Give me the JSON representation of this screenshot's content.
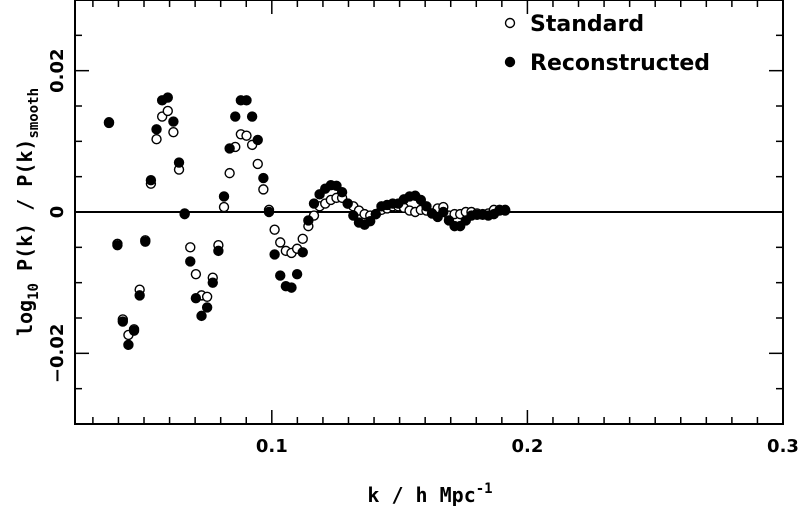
{
  "chart_data": {
    "type": "scatter",
    "xlabel": "k / h Mpc",
    "xlabel_sup": "-1",
    "ylabel_main": "log",
    "ylabel_sub1": "10",
    "ylabel_mid": " P(k) / P(k)",
    "ylabel_sub2": "smooth",
    "xlim": [
      0.023,
      0.3
    ],
    "ylim": [
      -0.03,
      0.03
    ],
    "x_ticks": [
      {
        "value": 0.1,
        "label": "0.1"
      },
      {
        "value": 0.2,
        "label": "0.2"
      },
      {
        "value": 0.3,
        "label": "0.3"
      }
    ],
    "y_ticks": [
      {
        "value": 0.02,
        "label": "0.02"
      },
      {
        "value": 0,
        "label": "0"
      },
      {
        "value": -0.02,
        "label": "−0.02"
      }
    ],
    "reference_line_y": 0,
    "legend_position": "top-right",
    "series": [
      {
        "name": "Standard",
        "marker": "open-circle",
        "points": [
          [
            0.0363,
            0.0126
          ],
          [
            0.0396,
            -0.0045
          ],
          [
            0.0417,
            -0.0152
          ],
          [
            0.0439,
            -0.0174
          ],
          [
            0.0461,
            -0.0166
          ],
          [
            0.0483,
            -0.011
          ],
          [
            0.0505,
            -0.004
          ],
          [
            0.0527,
            0.004
          ],
          [
            0.0549,
            0.0103
          ],
          [
            0.0571,
            0.0135
          ],
          [
            0.0593,
            0.0143
          ],
          [
            0.0615,
            0.0113
          ],
          [
            0.0637,
            0.006
          ],
          [
            0.0659,
            -0.0002
          ],
          [
            0.0681,
            -0.005
          ],
          [
            0.0703,
            -0.0088
          ],
          [
            0.0725,
            -0.0118
          ],
          [
            0.0747,
            -0.012
          ],
          [
            0.0769,
            -0.0093
          ],
          [
            0.0791,
            -0.0047
          ],
          [
            0.0813,
            0.0007
          ],
          [
            0.0835,
            0.0055
          ],
          [
            0.0857,
            0.0092
          ],
          [
            0.0879,
            0.011
          ],
          [
            0.0901,
            0.0108
          ],
          [
            0.0923,
            0.0095
          ],
          [
            0.0945,
            0.0068
          ],
          [
            0.0967,
            0.0032
          ],
          [
            0.0989,
            0.0003
          ],
          [
            0.1011,
            -0.0025
          ],
          [
            0.1033,
            -0.0043
          ],
          [
            0.1055,
            -0.0055
          ],
          [
            0.1077,
            -0.0058
          ],
          [
            0.1099,
            -0.0052
          ],
          [
            0.1121,
            -0.0038
          ],
          [
            0.1143,
            -0.002
          ],
          [
            0.1165,
            -0.0005
          ],
          [
            0.1187,
            0.0008
          ],
          [
            0.1209,
            0.0012
          ],
          [
            0.1231,
            0.0017
          ],
          [
            0.1253,
            0.002
          ],
          [
            0.1275,
            0.002
          ],
          [
            0.1297,
            0.0012
          ],
          [
            0.1319,
            0.0008
          ],
          [
            0.1341,
            0.0002
          ],
          [
            0.1363,
            -0.0003
          ],
          [
            0.1385,
            -0.0005
          ],
          [
            0.1407,
            -0.0003
          ],
          [
            0.1429,
            0.0003
          ],
          [
            0.1451,
            0.0005
          ],
          [
            0.1473,
            0.0008
          ],
          [
            0.1495,
            0.0008
          ],
          [
            0.1517,
            0.0006
          ],
          [
            0.1539,
            0.0002
          ],
          [
            0.1561,
            0.0
          ],
          [
            0.1583,
            0.0003
          ],
          [
            0.1605,
            0.0002
          ],
          [
            0.1627,
            -0.0002
          ],
          [
            0.1649,
            0.0005
          ],
          [
            0.1671,
            0.0007
          ],
          [
            0.1693,
            -0.0005
          ],
          [
            0.1715,
            -0.0003
          ],
          [
            0.1737,
            -0.0003
          ],
          [
            0.1759,
            0.0
          ],
          [
            0.1781,
            0.0
          ],
          [
            0.1803,
            -0.0002
          ],
          [
            0.1825,
            -0.0004
          ],
          [
            0.1847,
            -0.0002
          ],
          [
            0.1869,
            0.0003
          ],
          [
            0.1891,
            0.0003
          ],
          [
            0.1913,
            0.0003
          ]
        ]
      },
      {
        "name": "Reconstructed",
        "marker": "filled-circle",
        "points": [
          [
            0.0363,
            0.0127
          ],
          [
            0.0396,
            -0.0047
          ],
          [
            0.0417,
            -0.0155
          ],
          [
            0.0439,
            -0.0188
          ],
          [
            0.0461,
            -0.0168
          ],
          [
            0.0483,
            -0.0118
          ],
          [
            0.0505,
            -0.0042
          ],
          [
            0.0527,
            0.0045
          ],
          [
            0.0549,
            0.0117
          ],
          [
            0.0571,
            0.0158
          ],
          [
            0.0593,
            0.0162
          ],
          [
            0.0615,
            0.0128
          ],
          [
            0.0637,
            0.007
          ],
          [
            0.0659,
            -0.0003
          ],
          [
            0.0681,
            -0.007
          ],
          [
            0.0703,
            -0.0122
          ],
          [
            0.0725,
            -0.0147
          ],
          [
            0.0747,
            -0.0135
          ],
          [
            0.0769,
            -0.01
          ],
          [
            0.0791,
            -0.0055
          ],
          [
            0.0813,
            0.0022
          ],
          [
            0.0835,
            0.009
          ],
          [
            0.0857,
            0.0135
          ],
          [
            0.0879,
            0.0158
          ],
          [
            0.0901,
            0.0158
          ],
          [
            0.0923,
            0.0135
          ],
          [
            0.0945,
            0.0102
          ],
          [
            0.0967,
            0.0048
          ],
          [
            0.0989,
            0.0
          ],
          [
            0.1011,
            -0.006
          ],
          [
            0.1033,
            -0.009
          ],
          [
            0.1055,
            -0.0105
          ],
          [
            0.1077,
            -0.0107
          ],
          [
            0.1099,
            -0.0088
          ],
          [
            0.1121,
            -0.0057
          ],
          [
            0.1143,
            -0.0012
          ],
          [
            0.1165,
            0.0012
          ],
          [
            0.1187,
            0.0025
          ],
          [
            0.1209,
            0.0033
          ],
          [
            0.1231,
            0.0038
          ],
          [
            0.1253,
            0.0037
          ],
          [
            0.1275,
            0.0028
          ],
          [
            0.1297,
            0.0012
          ],
          [
            0.1319,
            -0.0005
          ],
          [
            0.1341,
            -0.0015
          ],
          [
            0.1363,
            -0.0018
          ],
          [
            0.1385,
            -0.0013
          ],
          [
            0.1407,
            -0.0003
          ],
          [
            0.1429,
            0.0008
          ],
          [
            0.1451,
            0.001
          ],
          [
            0.1473,
            0.0012
          ],
          [
            0.1495,
            0.0012
          ],
          [
            0.1517,
            0.0018
          ],
          [
            0.1539,
            0.0022
          ],
          [
            0.1561,
            0.0023
          ],
          [
            0.1583,
            0.0017
          ],
          [
            0.1605,
            0.0008
          ],
          [
            0.1627,
            -0.0002
          ],
          [
            0.1649,
            -0.0007
          ],
          [
            0.1671,
            0.0
          ],
          [
            0.1693,
            -0.0012
          ],
          [
            0.1715,
            -0.002
          ],
          [
            0.1737,
            -0.002
          ],
          [
            0.1759,
            -0.0012
          ],
          [
            0.1781,
            -0.0005
          ],
          [
            0.1803,
            -0.0004
          ],
          [
            0.1825,
            -0.0003
          ],
          [
            0.1847,
            -0.0005
          ],
          [
            0.1869,
            -0.0003
          ],
          [
            0.1891,
            0.0002
          ],
          [
            0.1913,
            0.0002
          ]
        ]
      }
    ]
  }
}
